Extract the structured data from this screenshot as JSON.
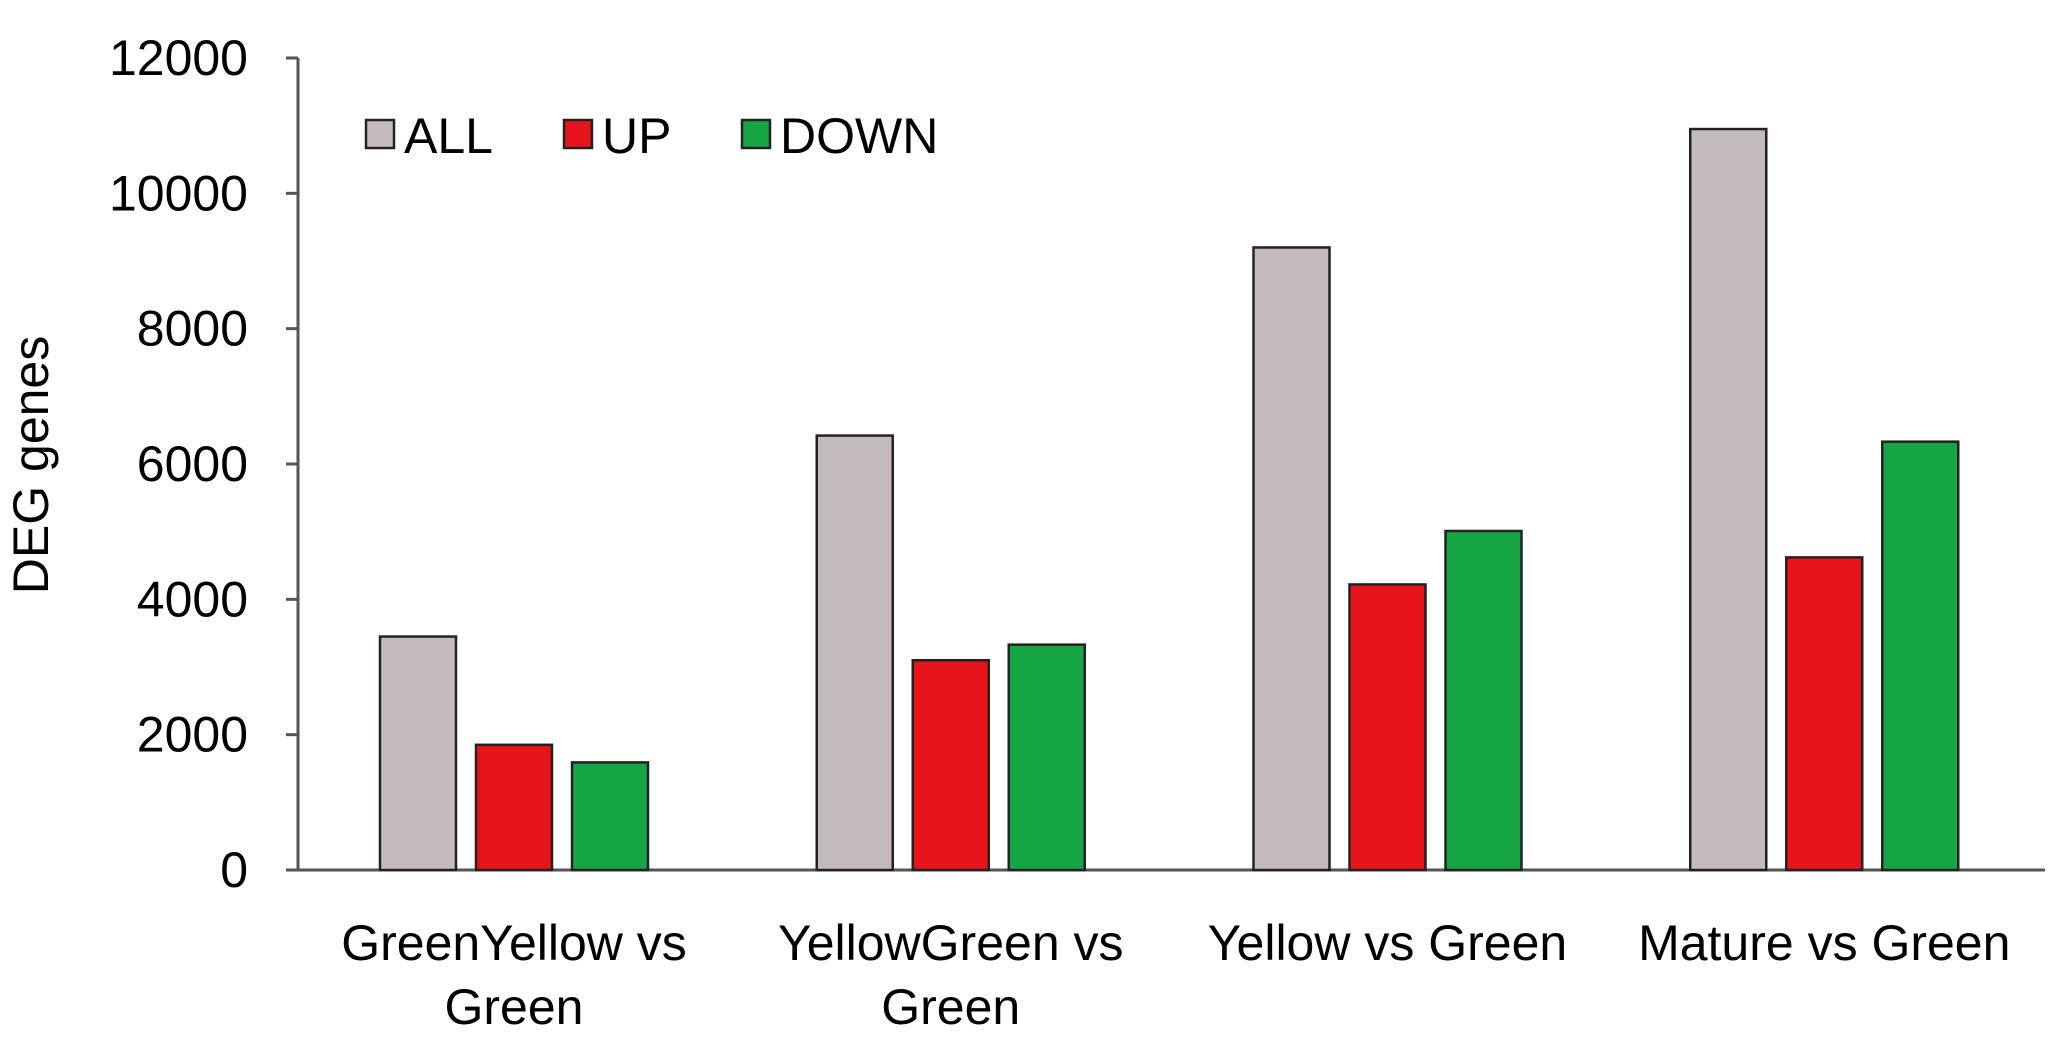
{
  "chart_data": {
    "type": "bar",
    "xlabel": "",
    "ylabel": "DEG genes",
    "ylim": [
      0,
      12000
    ],
    "y_ticks": [
      0,
      2000,
      4000,
      6000,
      8000,
      10000,
      12000
    ],
    "y_tick_labels": [
      "0",
      "2000",
      "4000",
      "6000",
      "8000",
      "10000",
      "12000"
    ],
    "grid": false,
    "legend_position": "top-left",
    "categories": [
      [
        "GreenYellow vs",
        "Green"
      ],
      [
        "YellowGreen vs",
        "Green"
      ],
      [
        "Yellow vs Green"
      ],
      [
        "Mature vs Green"
      ]
    ],
    "series": [
      {
        "name": "ALL",
        "color": "#c4bcbc",
        "values": [
          3450,
          6420,
          9200,
          10950
        ]
      },
      {
        "name": "UP",
        "color": "#e8141c",
        "values": [
          1850,
          3100,
          4220,
          4620
        ]
      },
      {
        "name": "DOWN",
        "color": "#16a545",
        "values": [
          1590,
          3330,
          5010,
          6330
        ]
      }
    ]
  }
}
